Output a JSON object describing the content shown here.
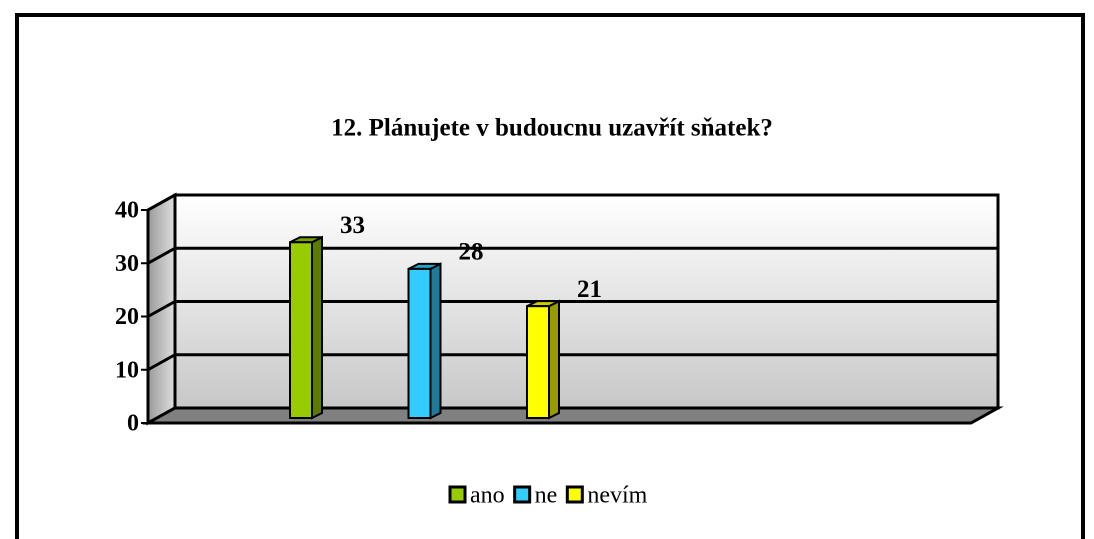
{
  "chart_data": {
    "type": "bar3d",
    "title": "12. Plánujete v budoucnu uzavřít sňatek?",
    "categories": [
      null
    ],
    "series": [
      {
        "name": "ano",
        "color": "#99cc00",
        "values": [
          33
        ]
      },
      {
        "name": "ne",
        "color": "#33ccff",
        "values": [
          28
        ]
      },
      {
        "name": "nevím",
        "color": "#ffff00",
        "values": [
          21
        ]
      }
    ],
    "ylim": [
      0,
      40
    ],
    "yticks": [
      0,
      10,
      20,
      30,
      40
    ],
    "grid": true,
    "legend": "bottom"
  }
}
